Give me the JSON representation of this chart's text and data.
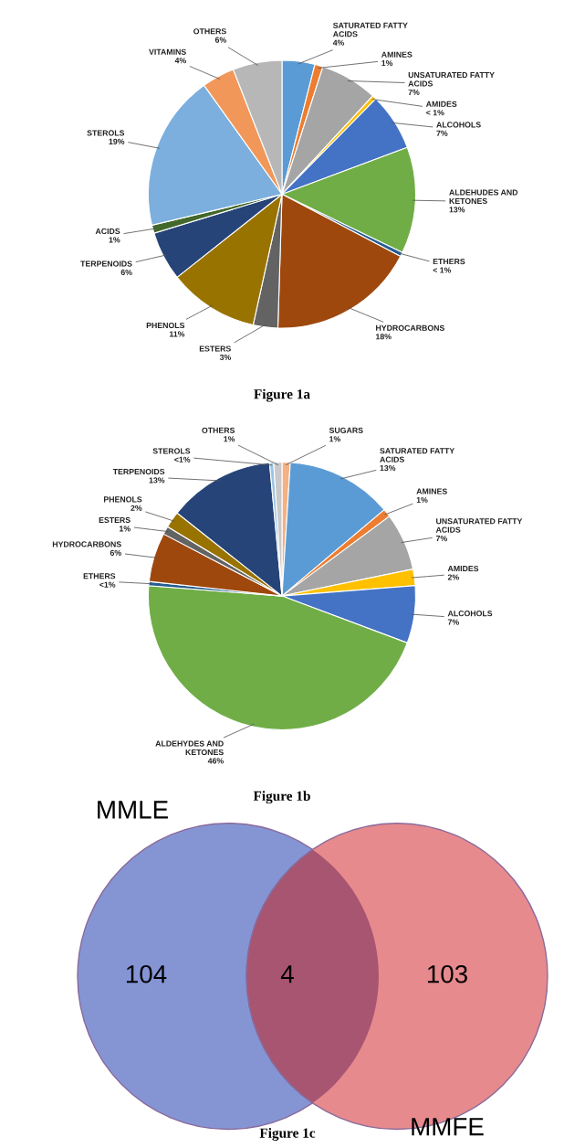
{
  "chart_data": [
    {
      "type": "pie",
      "title": "Figure 1a",
      "categories": [
        "SATURATED FATTY\nACIDS",
        "AMINES",
        "UNSATURATED FATTY\nACIDS",
        "AMIDES",
        "ALCOHOLS",
        "ALDEHUDES AND\nKETONES",
        "ETHERS",
        "HYDROCARBONS",
        "ESTERS",
        "PHENOLS",
        "TERPENOIDS",
        "ACIDS",
        "STEROLS",
        "VITAMINS",
        "OTHERS"
      ],
      "values": [
        4,
        1,
        7,
        0.5,
        7,
        13,
        0.5,
        18,
        3,
        11,
        6,
        1,
        19,
        4,
        6
      ],
      "value_labels": [
        "4%",
        "1%",
        "7%",
        "< 1%",
        "7%",
        "13%",
        "< 1%",
        "18%",
        "3%",
        "11%",
        "6%",
        "1%",
        "19%",
        "4%",
        "6%"
      ],
      "colors": [
        "#5b9bd5",
        "#ed7d31",
        "#a5a5a5",
        "#ffc000",
        "#4472c4",
        "#70ad47",
        "#255e91",
        "#9e480e",
        "#636363",
        "#997300",
        "#264478",
        "#43682b",
        "#7cafdd",
        "#f1975a",
        "#b7b7b7"
      ]
    },
    {
      "type": "pie",
      "title": "Figure 1b",
      "categories": [
        "SUGARS",
        "SATURATED FATTY\nACIDS",
        "AMINES",
        "UNSATURATED FATTY\nACIDS",
        "AMIDES",
        "ALCOHOLS",
        "ALDEHYDES AND\nKETONES",
        "ETHERS",
        "HYDROCARBONS",
        "ESTERS",
        "PHENOLS",
        "TERPENOIDS",
        "STEROLS",
        "OTHERS"
      ],
      "values": [
        1,
        13,
        1,
        7,
        2,
        7,
        46,
        0.5,
        6,
        1,
        2,
        13,
        0.5,
        1
      ],
      "value_labels": [
        "1%",
        "13%",
        "1%",
        "7%",
        "2%",
        "7%",
        "46%",
        "<1%",
        "6%",
        "1%",
        "2%",
        "13%",
        "<1%",
        "1%"
      ],
      "colors": [
        "#f4b183",
        "#5b9bd5",
        "#ed7d31",
        "#a5a5a5",
        "#ffc000",
        "#4472c4",
        "#70ad47",
        "#255e91",
        "#9e480e",
        "#636363",
        "#997300",
        "#264478",
        "#9dc3e6",
        "#c9c9c9"
      ]
    },
    {
      "type": "other",
      "title": "Figure 1c",
      "categories": [
        "MMLE",
        null,
        "MMFE"
      ],
      "values": [
        104,
        4,
        103
      ],
      "value_labels": [
        "104",
        "4",
        "103"
      ],
      "colors": [
        "#8595d4",
        "#a85572",
        "#e68a8e"
      ]
    }
  ]
}
